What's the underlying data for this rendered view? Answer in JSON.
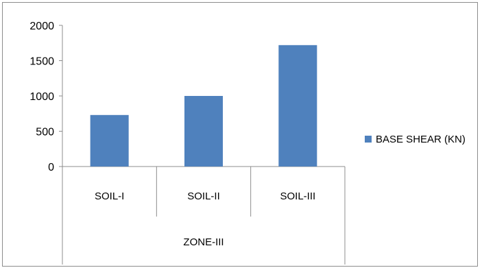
{
  "chart_data": {
    "type": "bar",
    "categories": [
      "SOIL-I",
      "SOIL-II",
      "SOIL-III"
    ],
    "group_label": "ZONE-III",
    "series": [
      {
        "name": "BASE SHEAR (KN)",
        "values": [
          730,
          1000,
          1720
        ],
        "color": "#4f81bd"
      }
    ],
    "ylim": [
      0,
      2000
    ],
    "yticks": [
      "0",
      "500",
      "1000",
      "1500",
      "2000"
    ],
    "title": "",
    "xlabel": "",
    "ylabel": "",
    "grid": false,
    "legend": "right"
  }
}
